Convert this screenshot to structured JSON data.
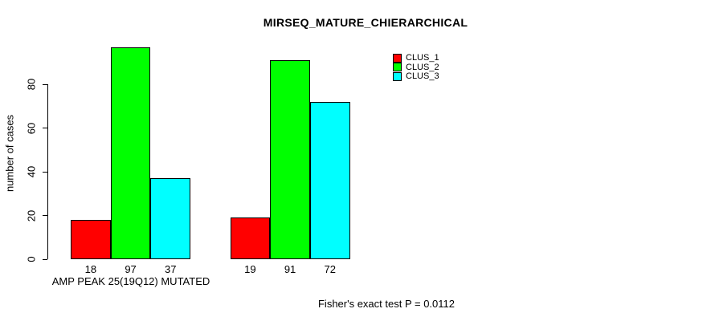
{
  "chart_data": {
    "type": "bar",
    "title": "MIRSEQ_MATURE_CHIERARCHICAL",
    "ylabel": "number of cases",
    "xlabel": "AMP PEAK 25(19Q12) MUTATED",
    "categories": [
      "AMP PEAK 25(19Q12) MUTATED",
      ""
    ],
    "series": [
      {
        "name": "CLUS_1",
        "color": "#FF0000",
        "values": [
          18,
          19
        ]
      },
      {
        "name": "CLUS_2",
        "color": "#00FF00",
        "values": [
          97,
          91
        ]
      },
      {
        "name": "CLUS_3",
        "color": "#00FFFF",
        "values": [
          37,
          72
        ]
      }
    ],
    "bar_value_labels": [
      [
        18,
        97,
        37
      ],
      [
        19,
        91,
        72
      ]
    ],
    "yticks": [
      0,
      20,
      40,
      60,
      80
    ],
    "ylim": [
      0,
      100
    ],
    "grid": false,
    "legend_position": "top-right",
    "bar_border_color": "#000000",
    "text_color": "#000000"
  },
  "annotations": {
    "fisher_test": "Fisher's exact test P = 0.0112"
  }
}
